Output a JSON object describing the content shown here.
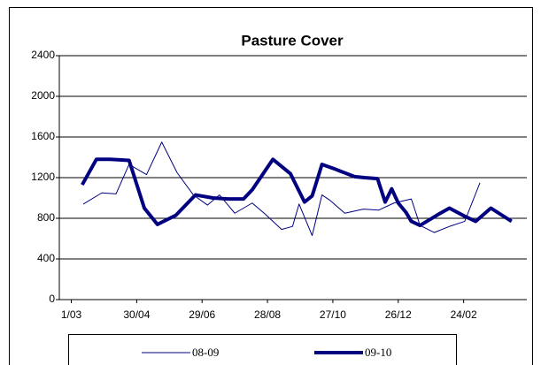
{
  "chart_data": {
    "type": "line",
    "title": "Pasture Cover",
    "xlim": [
      -11,
      418
    ],
    "xticks": [
      {
        "value": 0,
        "label": "1/03"
      },
      {
        "value": 60,
        "label": "30/04"
      },
      {
        "value": 120,
        "label": "29/06"
      },
      {
        "value": 180,
        "label": "28/08"
      },
      {
        "value": 240,
        "label": "27/10"
      },
      {
        "value": 300,
        "label": "26/12"
      },
      {
        "value": 360,
        "label": "24/02"
      }
    ],
    "ylim": [
      0,
      2400
    ],
    "yticks": [
      0,
      400,
      800,
      1200,
      1600,
      2000,
      2400
    ],
    "grid": true,
    "series": [
      {
        "name": "08-09",
        "color": "#000080",
        "width": 1,
        "x": [
          11,
          28,
          41,
          53,
          69,
          83,
          97,
          112,
          125,
          136,
          150,
          166,
          178,
          193,
          203,
          209,
          221,
          230,
          237,
          251,
          268,
          282,
          296,
          312,
          320,
          333,
          347,
          361,
          375
        ],
        "values": [
          940,
          1050,
          1040,
          1330,
          1230,
          1550,
          1250,
          1030,
          930,
          1030,
          850,
          950,
          840,
          690,
          720,
          940,
          630,
          1030,
          980,
          850,
          890,
          880,
          950,
          990,
          730,
          660,
          720,
          770,
          1150
        ]
      },
      {
        "name": "09-10",
        "color": "#000080",
        "width": 4,
        "x": [
          10,
          23,
          36,
          53,
          67,
          79,
          96,
          114,
          130,
          144,
          158,
          166,
          185,
          201,
          214,
          221,
          230,
          243,
          260,
          269,
          281,
          288,
          294,
          300,
          307,
          312,
          320,
          337,
          347,
          361,
          371,
          385,
          404
        ],
        "values": [
          1130,
          1380,
          1380,
          1370,
          900,
          740,
          830,
          1030,
          1000,
          990,
          990,
          1080,
          1380,
          1240,
          960,
          1020,
          1330,
          1280,
          1210,
          1200,
          1190,
          960,
          1090,
          950,
          860,
          770,
          730,
          840,
          900,
          820,
          770,
          900,
          770
        ]
      }
    ]
  }
}
